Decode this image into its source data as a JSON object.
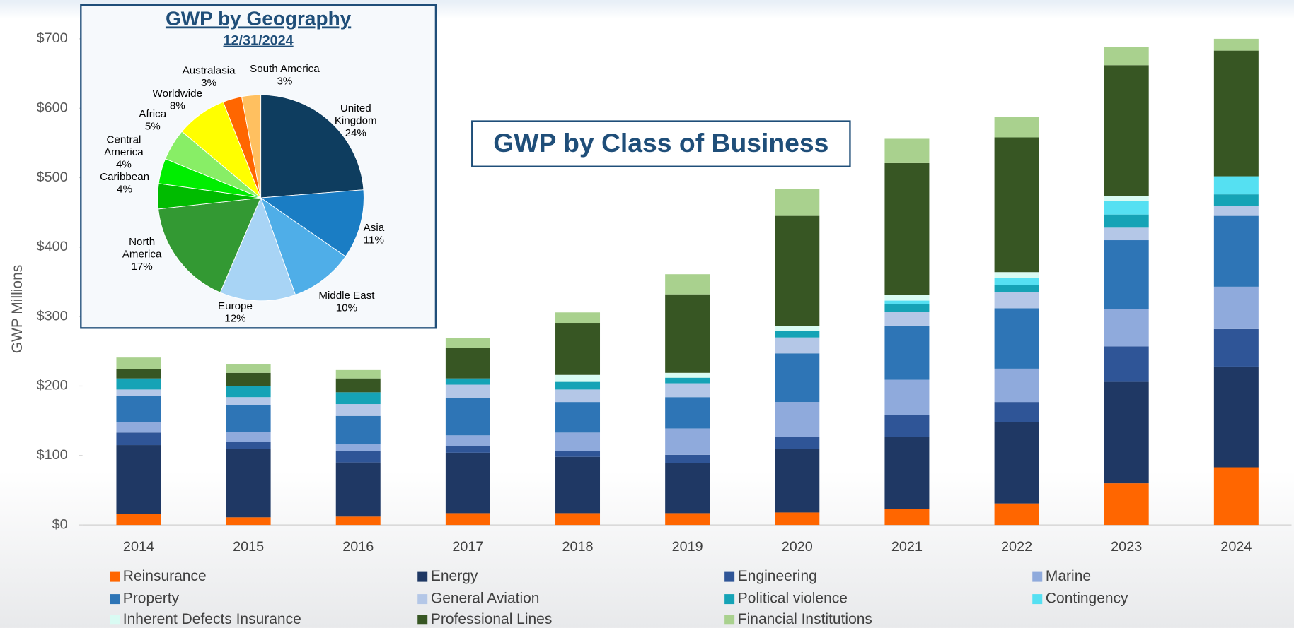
{
  "chart_data": [
    {
      "type": "bar",
      "stacked": true,
      "title": "GWP by Class of Business",
      "y_label": "GWP Millions",
      "categories": [
        "2014",
        "2015",
        "2016",
        "2017",
        "2018",
        "2019",
        "2020",
        "2021",
        "2022",
        "2023",
        "2024"
      ],
      "ylim": [
        0,
        700
      ],
      "yticks": [
        {
          "value": 0,
          "label": "$0"
        },
        {
          "value": 100,
          "label": "$100"
        },
        {
          "value": 200,
          "label": "$200"
        },
        {
          "value": 300,
          "label": "$300"
        },
        {
          "value": 400,
          "label": "$400"
        },
        {
          "value": 500,
          "label": "$500"
        },
        {
          "value": 600,
          "label": "$600"
        },
        {
          "value": 700,
          "label": "$700"
        }
      ],
      "series": [
        {
          "name": "Reinsurance",
          "color": "#ff6600",
          "values": [
            16,
            11,
            12,
            17,
            17,
            17,
            18,
            23,
            31,
            60,
            83
          ]
        },
        {
          "name": "Energy",
          "color": "#1f3864",
          "values": [
            99,
            98,
            78,
            87,
            81,
            72,
            91,
            104,
            117,
            146,
            145
          ]
        },
        {
          "name": "Engineering",
          "color": "#2f5597",
          "values": [
            18,
            11,
            16,
            10,
            8,
            12,
            18,
            31,
            29,
            51,
            54
          ]
        },
        {
          "name": "Marine",
          "color": "#8faadc",
          "values": [
            15,
            14,
            10,
            15,
            27,
            38,
            50,
            51,
            48,
            54,
            61
          ]
        },
        {
          "name": "Property",
          "color": "#2e75b6",
          "values": [
            38,
            39,
            41,
            54,
            44,
            45,
            70,
            78,
            87,
            99,
            102
          ]
        },
        {
          "name": "General Aviation",
          "color": "#b4c7e7",
          "values": [
            9,
            11,
            17,
            19,
            18,
            20,
            23,
            20,
            23,
            18,
            14
          ]
        },
        {
          "name": "Political violence",
          "color": "#15a3b6",
          "values": [
            16,
            16,
            17,
            9,
            11,
            8,
            9,
            11,
            10,
            19,
            17
          ]
        },
        {
          "name": "Contingency",
          "color": "#55e0f2",
          "values": [
            0,
            0,
            0,
            0,
            0,
            0,
            0,
            5,
            11,
            20,
            26
          ]
        },
        {
          "name": "Inherent Defects Insurance",
          "color": "#d9fbf3",
          "values": [
            0,
            0,
            0,
            0,
            10,
            7,
            7,
            8,
            8,
            7,
            0
          ]
        },
        {
          "name": "Professional Lines",
          "color": "#375623",
          "values": [
            13,
            19,
            20,
            44,
            75,
            113,
            159,
            190,
            194,
            188,
            181
          ]
        },
        {
          "name": "Financial Institutions",
          "color": "#a9d18e",
          "values": [
            17,
            13,
            12,
            14,
            15,
            29,
            39,
            35,
            29,
            26,
            17
          ]
        }
      ]
    },
    {
      "type": "pie",
      "title": "GWP by Geography",
      "subtitle": "12/31/2024",
      "categories": [
        "United Kingdom",
        "Asia",
        "Middle East",
        "Europe",
        "North America",
        "Caribbean",
        "Central America",
        "Africa",
        "Worldwide",
        "Australasia",
        "South America"
      ],
      "values": [
        24,
        11,
        10,
        12,
        17,
        4,
        4,
        5,
        8,
        3,
        3
      ],
      "value_labels": [
        "24%",
        "11%",
        "10%",
        "12%",
        "17%",
        "4%",
        "4%",
        "5%",
        "8%",
        "3%",
        "3%"
      ],
      "colors": [
        "#0e3d5f",
        "#1a7dc4",
        "#4faee8",
        "#a8d4f5",
        "#339933",
        "#00bb00",
        "#00ee00",
        "#88ee66",
        "#ffff00",
        "#ff6600",
        "#ffc060"
      ]
    }
  ]
}
